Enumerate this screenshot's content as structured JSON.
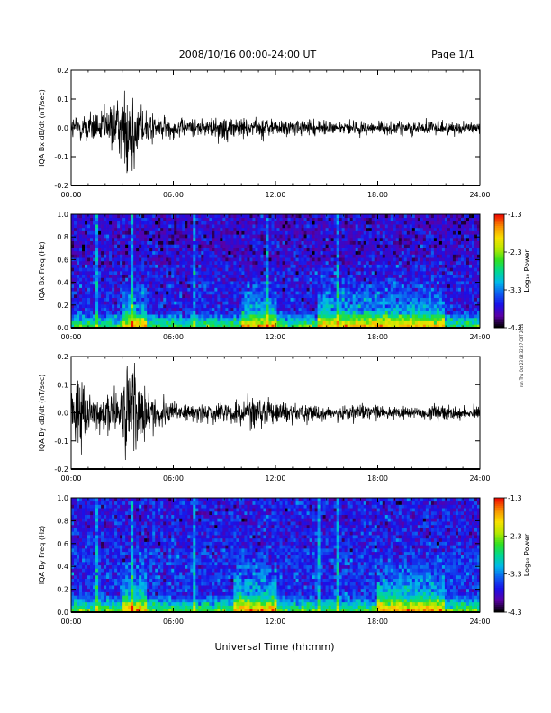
{
  "header": {
    "title": "2008/10/16  00:00-24:00 UT",
    "page": "Page 1/1"
  },
  "x_axis": {
    "label": "Universal Time (hh:mm)",
    "ticks": [
      "00:00",
      "06:00",
      "12:00",
      "18:00",
      "24:00"
    ]
  },
  "side_note": "run Thu Oct 23 08:32:27 CDT 2014",
  "colorbar": {
    "label": "Log₁₀ Power",
    "ticks": [
      "-1.3",
      "-2.3",
      "-3.3",
      "-4.3"
    ],
    "colors": [
      "#000000",
      "#5b00a6",
      "#1a10e8",
      "#0d5cf0",
      "#00b8ea",
      "#00d890",
      "#30e020",
      "#b8e800",
      "#f8e000",
      "#f89000",
      "#f01000"
    ]
  },
  "chart_data": [
    {
      "type": "line",
      "ylabel": "IQA Bx dB/dt (nT/sec)",
      "xlim": [
        0,
        24
      ],
      "ylim": [
        -0.2,
        0.2
      ],
      "yticks": [
        "-0.2",
        "-0.1",
        "0.0",
        "0.1",
        "0.2"
      ],
      "series": [
        {
          "values_note": "envelope (approx peak amplitude, nT/sec) vs hour",
          "hours": [
            0,
            1,
            2,
            3,
            3.3,
            3.6,
            4,
            5,
            6,
            7,
            8,
            9,
            10,
            11,
            12,
            13,
            14,
            15,
            16,
            17,
            18,
            19,
            20,
            21,
            22,
            23,
            24
          ],
          "amplitude": [
            0.05,
            0.07,
            0.08,
            0.12,
            0.2,
            0.2,
            0.12,
            0.06,
            0.04,
            0.04,
            0.045,
            0.05,
            0.05,
            0.045,
            0.04,
            0.035,
            0.035,
            0.03,
            0.03,
            0.03,
            0.028,
            0.03,
            0.03,
            0.03,
            0.03,
            0.028,
            0.025
          ]
        }
      ]
    },
    {
      "type": "heatmap",
      "ylabel": "IQA Bx Freq (Hz)",
      "xlim": [
        0,
        24
      ],
      "ylim": [
        0.0,
        1.0
      ],
      "yticks": [
        "0.0",
        "0.2",
        "0.4",
        "0.6",
        "0.8",
        "1.0"
      ],
      "color_range": [
        -4.3,
        -1.3
      ],
      "background_level": -3.7,
      "low_freq_enhancement_hours": [
        [
          3,
          4.5
        ],
        [
          10,
          12
        ],
        [
          14.5,
          18
        ],
        [
          18,
          22
        ]
      ],
      "vertical_stripes_hours": [
        1.5,
        3.6,
        7.2,
        11.5,
        15.6
      ]
    },
    {
      "type": "line",
      "ylabel": "IQA By dB/dt (nT/sec)",
      "xlim": [
        0,
        24
      ],
      "ylim": [
        -0.2,
        0.2
      ],
      "yticks": [
        "-0.2",
        "-0.1",
        "0.0",
        "0.1",
        "0.2"
      ],
      "series": [
        {
          "values_note": "envelope (approx peak amplitude, nT/sec) vs hour",
          "hours": [
            0,
            0.5,
            1,
            2,
            3,
            3.3,
            3.6,
            4,
            4.5,
            5,
            6,
            7,
            8,
            9,
            10,
            11,
            12,
            13,
            14,
            15,
            16,
            17,
            18,
            19,
            20,
            21,
            22,
            23,
            24
          ],
          "amplitude": [
            0.08,
            0.2,
            0.1,
            0.07,
            0.12,
            0.2,
            0.2,
            0.16,
            0.1,
            0.07,
            0.05,
            0.04,
            0.045,
            0.05,
            0.06,
            0.08,
            0.05,
            0.04,
            0.035,
            0.03,
            0.03,
            0.035,
            0.03,
            0.03,
            0.03,
            0.03,
            0.035,
            0.03,
            0.025
          ]
        }
      ]
    },
    {
      "type": "heatmap",
      "ylabel": "IQA By Freq (Hz)",
      "xlim": [
        0,
        24
      ],
      "ylim": [
        0.0,
        1.0
      ],
      "yticks": [
        "0.0",
        "0.2",
        "0.4",
        "0.6",
        "0.8",
        "1.0"
      ],
      "color_range": [
        -4.3,
        -1.3
      ],
      "background_level": -3.6,
      "low_freq_enhancement_hours": [
        [
          3,
          4.5
        ],
        [
          9.5,
          12
        ],
        [
          18,
          22
        ]
      ],
      "vertical_stripes_hours": [
        1.5,
        3.6,
        7.2,
        14.5,
        15.6
      ]
    }
  ]
}
